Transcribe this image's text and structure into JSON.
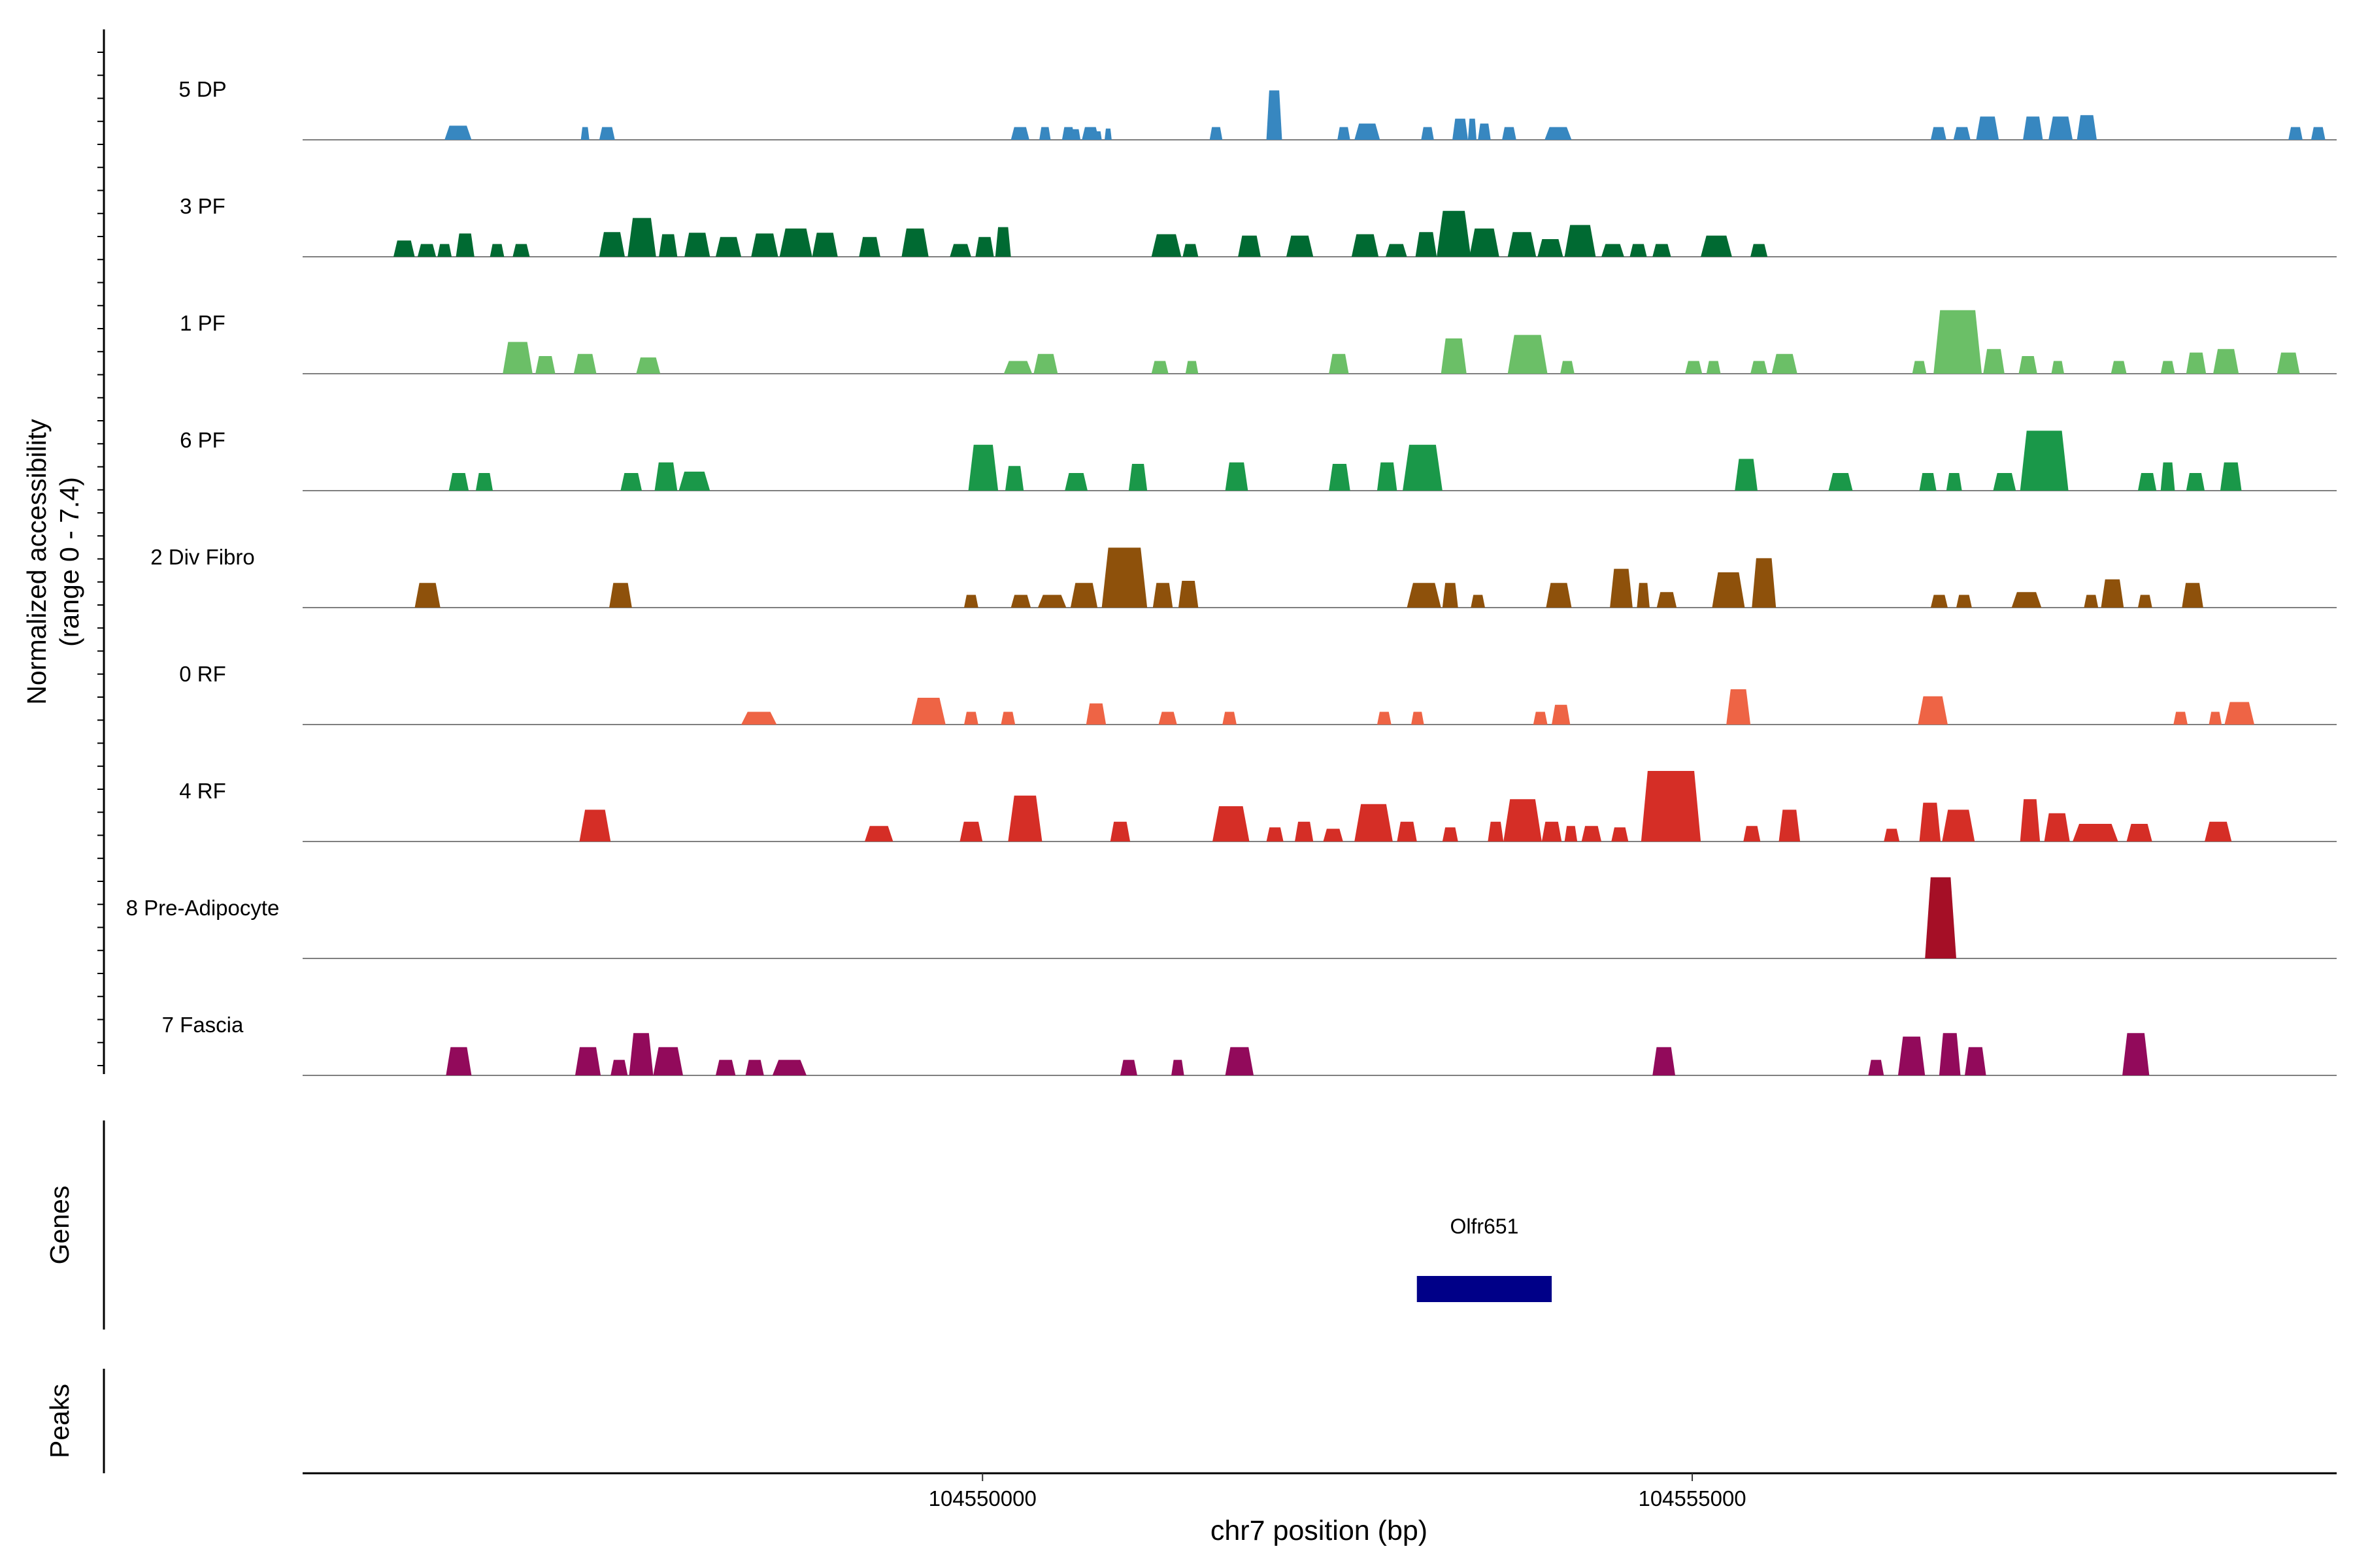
{
  "chart_data": {
    "type": "area",
    "title": "",
    "ylabel_line1": "Normalized accessibility",
    "ylabel_line2": "(range 0 - 7.4)",
    "ylim": [
      0,
      7.4
    ],
    "xlabel": "chr7 position (bp)",
    "xlim": [
      104545210,
      104559540
    ],
    "x_ticks": [
      {
        "value": 104550000,
        "label": "104550000"
      },
      {
        "value": 104555000,
        "label": "104555000"
      }
    ],
    "tracks": [
      {
        "name": "5 DP",
        "color": "#3787c0",
        "peaks": [
          [
            104546210,
            104546400,
            2
          ],
          [
            104547170,
            104547230,
            1.8
          ],
          [
            104547300,
            104547410,
            1.8
          ],
          [
            104550200,
            104550330,
            1.8
          ],
          [
            104550400,
            104550480,
            1.8
          ],
          [
            104550560,
            104550650,
            1.8
          ],
          [
            104550700,
            104550820,
            1.8
          ],
          [
            104550620,
            104550690,
            1.5
          ],
          [
            104550790,
            104550840,
            1.2
          ],
          [
            104550860,
            104550910,
            1.6
          ],
          [
            104551600,
            104551690,
            1.8
          ],
          [
            104552000,
            104552110,
            7
          ],
          [
            104552500,
            104552590,
            1.8
          ],
          [
            104552620,
            104552800,
            2.3
          ],
          [
            104553090,
            104553180,
            1.8
          ],
          [
            104553310,
            104553420,
            3
          ],
          [
            104553420,
            104553480,
            3
          ],
          [
            104553490,
            104553580,
            2.3
          ],
          [
            104553660,
            104553760,
            1.8
          ],
          [
            104553960,
            104554150,
            1.8
          ],
          [
            104556680,
            104556790,
            1.8
          ],
          [
            104556840,
            104556960,
            1.8
          ],
          [
            104557000,
            104557160,
            3.3
          ],
          [
            104557330,
            104557470,
            3.3
          ],
          [
            104557510,
            104557680,
            3.3
          ],
          [
            104557710,
            104557850,
            3.5
          ],
          [
            104559200,
            104559300,
            1.8
          ],
          [
            104559360,
            104559460,
            1.8
          ]
        ]
      },
      {
        "name": "3 PF",
        "color": "#006a32",
        "peaks": [
          [
            104545850,
            104546000,
            2.3
          ],
          [
            104546020,
            104546150,
            1.8
          ],
          [
            104546160,
            104546260,
            1.8
          ],
          [
            104546290,
            104546420,
            3.3
          ],
          [
            104546530,
            104546630,
            1.8
          ],
          [
            104546690,
            104546810,
            1.8
          ],
          [
            104547300,
            104547480,
            3.5
          ],
          [
            104547500,
            104547700,
            5.5
          ],
          [
            104547720,
            104547850,
            3.2
          ],
          [
            104547900,
            104548080,
            3.4
          ],
          [
            104548120,
            104548300,
            2.8
          ],
          [
            104548370,
            104548560,
            3.3
          ],
          [
            104548570,
            104548800,
            4
          ],
          [
            104548800,
            104548980,
            3.4
          ],
          [
            104549130,
            104549280,
            2.8
          ],
          [
            104549430,
            104549620,
            4
          ],
          [
            104549770,
            104549920,
            1.8
          ],
          [
            104549950,
            104550080,
            2.8
          ],
          [
            104550090,
            104550200,
            4.2
          ],
          [
            104551190,
            104551400,
            3.2
          ],
          [
            104551410,
            104551520,
            1.8
          ],
          [
            104551800,
            104551960,
            3
          ],
          [
            104552140,
            104552330,
            3
          ],
          [
            104552600,
            104552790,
            3.2
          ],
          [
            104552840,
            104552990,
            1.8
          ],
          [
            104553050,
            104553200,
            3.5
          ],
          [
            104553200,
            104553440,
            6.5
          ],
          [
            104553430,
            104553640,
            4
          ],
          [
            104553700,
            104553900,
            3.5
          ],
          [
            104553910,
            104554090,
            2.5
          ],
          [
            104554100,
            104554320,
            4.5
          ],
          [
            104554360,
            104554520,
            1.8
          ],
          [
            104554560,
            104554680,
            1.8
          ],
          [
            104554720,
            104554850,
            1.8
          ],
          [
            104555060,
            104555280,
            3
          ],
          [
            104555410,
            104555530,
            1.8
          ]
        ]
      },
      {
        "name": "1 PF",
        "color": "#6bbf67",
        "peaks": [
          [
            104546620,
            104546830,
            4.5
          ],
          [
            104546850,
            104546990,
            2.5
          ],
          [
            104547120,
            104547280,
            2.8
          ],
          [
            104547560,
            104547730,
            2.3
          ],
          [
            104550150,
            104550350,
            1.8
          ],
          [
            104550360,
            104550530,
            2.8
          ],
          [
            104551190,
            104551310,
            1.8
          ],
          [
            104551430,
            104551520,
            1.8
          ],
          [
            104552440,
            104552580,
            2.8
          ],
          [
            104553230,
            104553410,
            5
          ],
          [
            104553700,
            104553980,
            5.5
          ],
          [
            104554070,
            104554170,
            1.8
          ],
          [
            104554950,
            104555070,
            1.8
          ],
          [
            104555100,
            104555200,
            1.8
          ],
          [
            104555410,
            104555530,
            1.8
          ],
          [
            104555560,
            104555740,
            2.8
          ],
          [
            104556550,
            104556650,
            1.8
          ],
          [
            104556700,
            104557040,
            9
          ],
          [
            104557050,
            104557200,
            3.5
          ],
          [
            104557300,
            104557430,
            2.5
          ],
          [
            104557530,
            104557620,
            1.8
          ],
          [
            104557950,
            104558060,
            1.8
          ],
          [
            104558300,
            104558400,
            1.8
          ],
          [
            104558480,
            104558620,
            3
          ],
          [
            104558670,
            104558850,
            3.5
          ],
          [
            104559120,
            104559280,
            3
          ]
        ]
      },
      {
        "name": "6 PF",
        "color": "#1a9849",
        "peaks": [
          [
            104546240,
            104546380,
            2.5
          ],
          [
            104546430,
            104546550,
            2.5
          ],
          [
            104547450,
            104547600,
            2.5
          ],
          [
            104547690,
            104547850,
            4
          ],
          [
            104547860,
            104548080,
            2.7
          ],
          [
            104549900,
            104550110,
            6.5
          ],
          [
            104550160,
            104550290,
            3.5
          ],
          [
            104550580,
            104550740,
            2.5
          ],
          [
            104551030,
            104551160,
            3.8
          ],
          [
            104551710,
            104551870,
            4
          ],
          [
            104552440,
            104552590,
            3.8
          ],
          [
            104552780,
            104552920,
            4
          ],
          [
            104552960,
            104553240,
            6.5
          ],
          [
            104555300,
            104555460,
            4.5
          ],
          [
            104555960,
            104556130,
            2.5
          ],
          [
            104556600,
            104556720,
            2.5
          ],
          [
            104556790,
            104556900,
            2.5
          ],
          [
            104557120,
            104557280,
            2.5
          ],
          [
            104557310,
            104557650,
            8.5
          ],
          [
            104558140,
            104558270,
            2.5
          ],
          [
            104558300,
            104558400,
            4
          ],
          [
            104558480,
            104558610,
            2.5
          ],
          [
            104558720,
            104558870,
            4
          ]
        ]
      },
      {
        "name": "2 Div Fibro",
        "color": "#8e510b",
        "peaks": [
          [
            104546000,
            104546180,
            3.5
          ],
          [
            104547370,
            104547530,
            3.5
          ],
          [
            104549870,
            104549970,
            1.8
          ],
          [
            104550200,
            104550340,
            1.8
          ],
          [
            104550390,
            104550590,
            1.8
          ],
          [
            104550620,
            104550810,
            3.5
          ],
          [
            104550840,
            104551160,
            8.5
          ],
          [
            104551200,
            104551340,
            3.5
          ],
          [
            104551380,
            104551520,
            3.8
          ],
          [
            104552990,
            104553230,
            3.5
          ],
          [
            104553240,
            104553350,
            3.5
          ],
          [
            104553440,
            104553540,
            1.8
          ],
          [
            104553970,
            104554150,
            3.5
          ],
          [
            104554420,
            104554580,
            5.5
          ],
          [
            104554610,
            104554700,
            3.5
          ],
          [
            104554750,
            104554890,
            2.2
          ],
          [
            104555140,
            104555370,
            5
          ],
          [
            104555420,
            104555590,
            7
          ],
          [
            104556680,
            104556800,
            1.8
          ],
          [
            104556860,
            104556970,
            1.8
          ],
          [
            104557250,
            104557460,
            2.2
          ],
          [
            104557760,
            104557860,
            1.8
          ],
          [
            104557880,
            104558040,
            4
          ],
          [
            104558140,
            104558240,
            1.8
          ],
          [
            104558450,
            104558600,
            3.5
          ]
        ]
      },
      {
        "name": "0 RF",
        "color": "#ee6445",
        "peaks": [
          [
            104548300,
            104548550,
            1.8
          ],
          [
            104549500,
            104549740,
            3.8
          ],
          [
            104549870,
            104549970,
            1.8
          ],
          [
            104550130,
            104550230,
            1.8
          ],
          [
            104550730,
            104550870,
            3
          ],
          [
            104551240,
            104551370,
            1.8
          ],
          [
            104551690,
            104551790,
            1.8
          ],
          [
            104552780,
            104552880,
            1.8
          ],
          [
            104553020,
            104553110,
            1.8
          ],
          [
            104553880,
            104553980,
            1.8
          ],
          [
            104554010,
            104554140,
            2.8
          ],
          [
            104555240,
            104555410,
            5
          ],
          [
            104556590,
            104556800,
            4
          ],
          [
            104558390,
            104558490,
            1.8
          ],
          [
            104558640,
            104558730,
            1.8
          ],
          [
            104558750,
            104558960,
            3.2
          ]
        ]
      },
      {
        "name": "4 RF",
        "color": "#d52e26",
        "peaks": [
          [
            104547160,
            104547380,
            4.5
          ],
          [
            104549170,
            104549370,
            2.2
          ],
          [
            104549840,
            104550000,
            2.8
          ],
          [
            104550180,
            104550420,
            6.5
          ],
          [
            104550900,
            104551040,
            2.8
          ],
          [
            104551620,
            104551880,
            5
          ],
          [
            104552000,
            104552120,
            2
          ],
          [
            104552200,
            104552330,
            2.8
          ],
          [
            104552400,
            104552540,
            1.8
          ],
          [
            104552620,
            104552890,
            5.3
          ],
          [
            104552920,
            104553060,
            2.8
          ],
          [
            104553240,
            104553350,
            2
          ],
          [
            104553560,
            104553670,
            2.8
          ],
          [
            104553670,
            104553940,
            6
          ],
          [
            104553940,
            104554080,
            2.8
          ],
          [
            104554100,
            104554190,
            2.2
          ],
          [
            104554220,
            104554360,
            2.2
          ],
          [
            104554430,
            104554550,
            2
          ],
          [
            104554640,
            104555060,
            10
          ],
          [
            104555360,
            104555480,
            2.2
          ],
          [
            104555610,
            104555760,
            4.5
          ],
          [
            104556350,
            104556460,
            1.8
          ],
          [
            104556600,
            104556750,
            5.5
          ],
          [
            104556760,
            104556990,
            4.5
          ],
          [
            104557310,
            104557450,
            6
          ],
          [
            104557480,
            104557660,
            4
          ],
          [
            104557680,
            104558000,
            2.5
          ],
          [
            104558060,
            104558240,
            2.5
          ],
          [
            104558610,
            104558800,
            2.8
          ]
        ]
      },
      {
        "name": "8 Pre-Adipocyte",
        "color": "#a50f26",
        "peaks": [
          [
            104556640,
            104556860,
            11.5
          ]
        ]
      },
      {
        "name": "7 Fascia",
        "color": "#920a5b",
        "peaks": [
          [
            104546220,
            104546400,
            4
          ],
          [
            104547130,
            104547310,
            4
          ],
          [
            104547380,
            104547500,
            2.2
          ],
          [
            104547510,
            104547680,
            6
          ],
          [
            104547680,
            104547890,
            4
          ],
          [
            104548120,
            104548260,
            2.2
          ],
          [
            104548330,
            104548460,
            2.2
          ],
          [
            104548520,
            104548760,
            2.2
          ],
          [
            104550970,
            104551090,
            2.2
          ],
          [
            104551330,
            104551420,
            2.2
          ],
          [
            104551710,
            104551910,
            4
          ],
          [
            104554720,
            104554880,
            4
          ],
          [
            104556240,
            104556350,
            2.2
          ],
          [
            104556450,
            104556640,
            5.5
          ],
          [
            104556740,
            104556890,
            6
          ],
          [
            104556920,
            104557070,
            4
          ],
          [
            104558030,
            104558220,
            6
          ]
        ]
      }
    ],
    "genes_label": "Genes",
    "gene": {
      "name": "Olfr651",
      "start": 104553060,
      "end": 104554010,
      "color": "#000088"
    },
    "peaks_label": "Peaks"
  }
}
